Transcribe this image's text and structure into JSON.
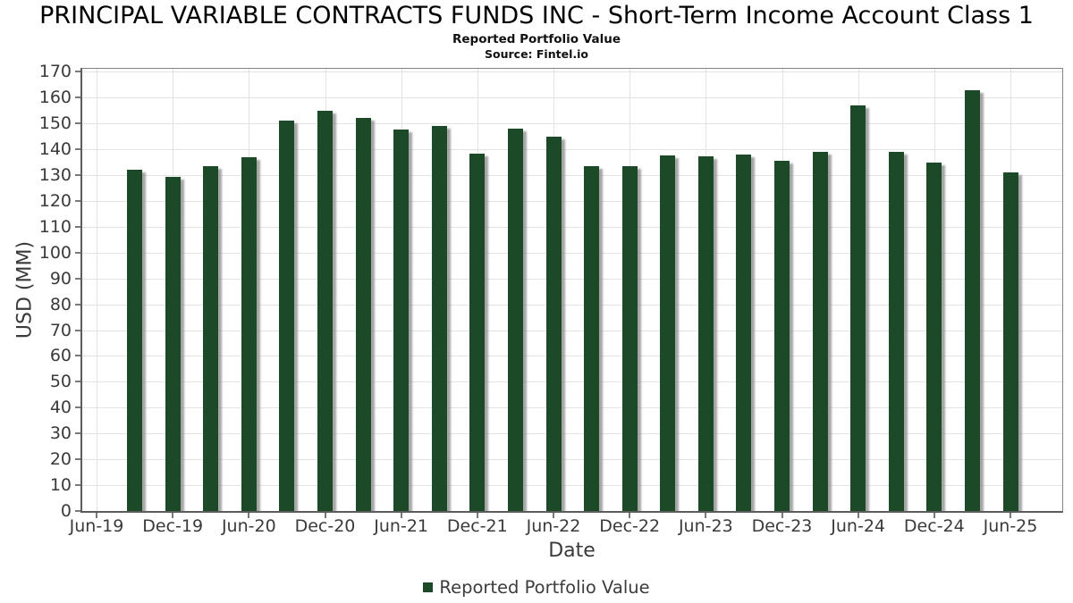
{
  "header": {
    "title": "PRINCIPAL VARIABLE CONTRACTS FUNDS INC - Short-Term Income Account Class 1",
    "subtitle": "Reported Portfolio Value",
    "source": "Source: Fintel.io"
  },
  "chart_data": {
    "type": "bar",
    "title": "PRINCIPAL VARIABLE CONTRACTS FUNDS INC - Short-Term Income Account Class 1",
    "subtitle": "Reported Portfolio Value",
    "source": "Source: Fintel.io",
    "xlabel": "Date",
    "ylabel": "USD (MM)",
    "ylim": [
      0,
      170
    ],
    "ytick_step": 10,
    "grid": true,
    "legend_position": "bottom",
    "legend": [
      "Reported Portfolio Value"
    ],
    "bar_color": "#1c4a28",
    "categories": [
      "Sep-19",
      "Dec-19",
      "Mar-20",
      "Jun-20",
      "Sep-20",
      "Dec-20",
      "Mar-21",
      "Jun-21",
      "Sep-21",
      "Dec-21",
      "Mar-22",
      "Jun-22",
      "Sep-22",
      "Dec-22",
      "Mar-23",
      "Jun-23",
      "Sep-23",
      "Dec-23",
      "Mar-24",
      "Jun-24",
      "Sep-24",
      "Dec-24",
      "Mar-25",
      "Jun-25"
    ],
    "values": [
      132,
      129.5,
      133.5,
      137,
      151,
      154.8,
      152,
      147.5,
      149,
      138.5,
      148,
      145,
      133.5,
      133.5,
      137.5,
      137.3,
      138,
      135.5,
      139,
      157,
      139,
      135,
      163,
      131
    ],
    "xtick_labels": [
      "Jun-19",
      "Dec-19",
      "Jun-20",
      "Dec-20",
      "Jun-21",
      "Dec-21",
      "Jun-22",
      "Dec-22",
      "Jun-23",
      "Dec-23",
      "Jun-24",
      "Dec-24",
      "Jun-25"
    ]
  }
}
